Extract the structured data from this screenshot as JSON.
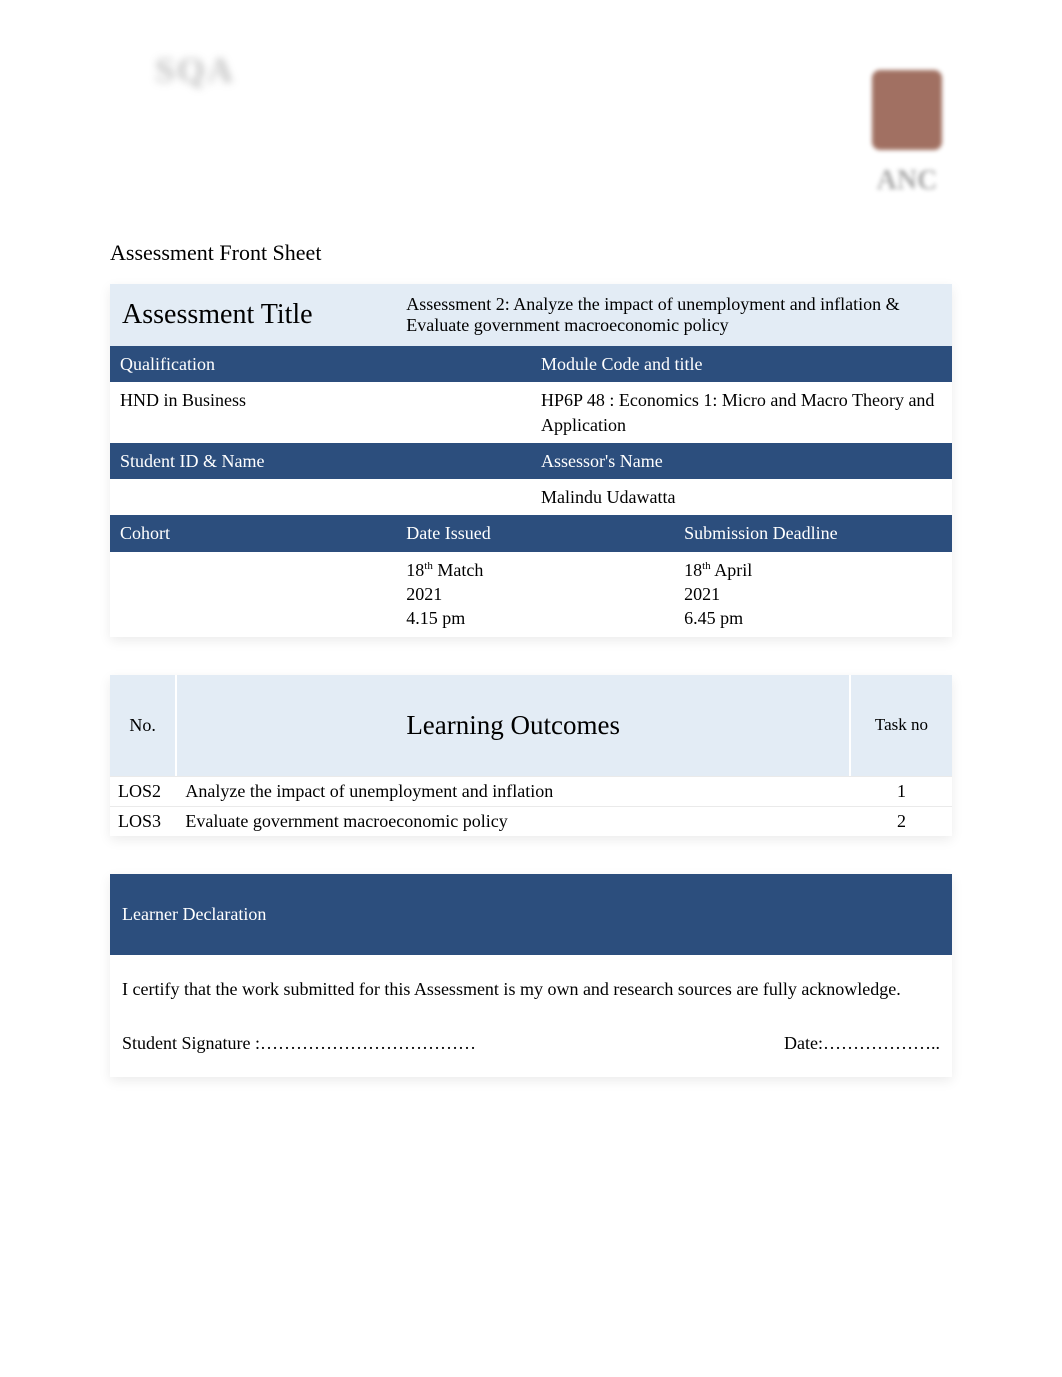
{
  "page_title": "Assessment Front Sheet",
  "colors": {
    "header_bg": "#2c4e7d",
    "header_text": "#ffffff",
    "light_bg": "#e3ecf5",
    "white_bg": "#ffffff",
    "text": "#000000"
  },
  "assessment": {
    "title_label": "Assessment Title",
    "title_value": "Assessment 2: Analyze the impact of unemployment and inflation & Evaluate government macroeconomic policy",
    "qualification_label": "Qualification",
    "qualification_value": "HND in Business",
    "module_label": "Module Code and title",
    "module_value": "HP6P 48 : Economics 1: Micro and Macro Theory and Application",
    "student_label": "Student ID & Name",
    "student_value": "",
    "assessor_label": "Assessor's Name",
    "assessor_value": "Malindu Udawatta",
    "cohort_label": "Cohort",
    "cohort_value": "",
    "date_issued_label": "Date Issued",
    "date_issued_value_line1": "18",
    "date_issued_sup": "th",
    "date_issued_value_line1b": " Match",
    "date_issued_value_line2": "2021",
    "date_issued_value_line3": "4.15 pm",
    "deadline_label": "Submission Deadline",
    "deadline_value_line1": "18",
    "deadline_sup": "th",
    "deadline_value_line1b": " April",
    "deadline_value_line2": "2021",
    "deadline_value_line3": "6.45 pm"
  },
  "outcomes": {
    "no_header": "No.",
    "title_header": "Learning Outcomes",
    "task_header": "Task no",
    "rows": [
      {
        "no": "LOS2",
        "title": "Analyze the impact of unemployment and inflation",
        "task": "1"
      },
      {
        "no": "LOS3",
        "title": "Evaluate government macroeconomic policy",
        "task": "2"
      }
    ]
  },
  "declaration": {
    "header": "Learner Declaration",
    "body": "I certify that the work submitted for this Assessment is my own and research sources are fully acknowledge.",
    "signature_label": "Student Signature :………………………………",
    "date_label": "Date:……………….."
  }
}
